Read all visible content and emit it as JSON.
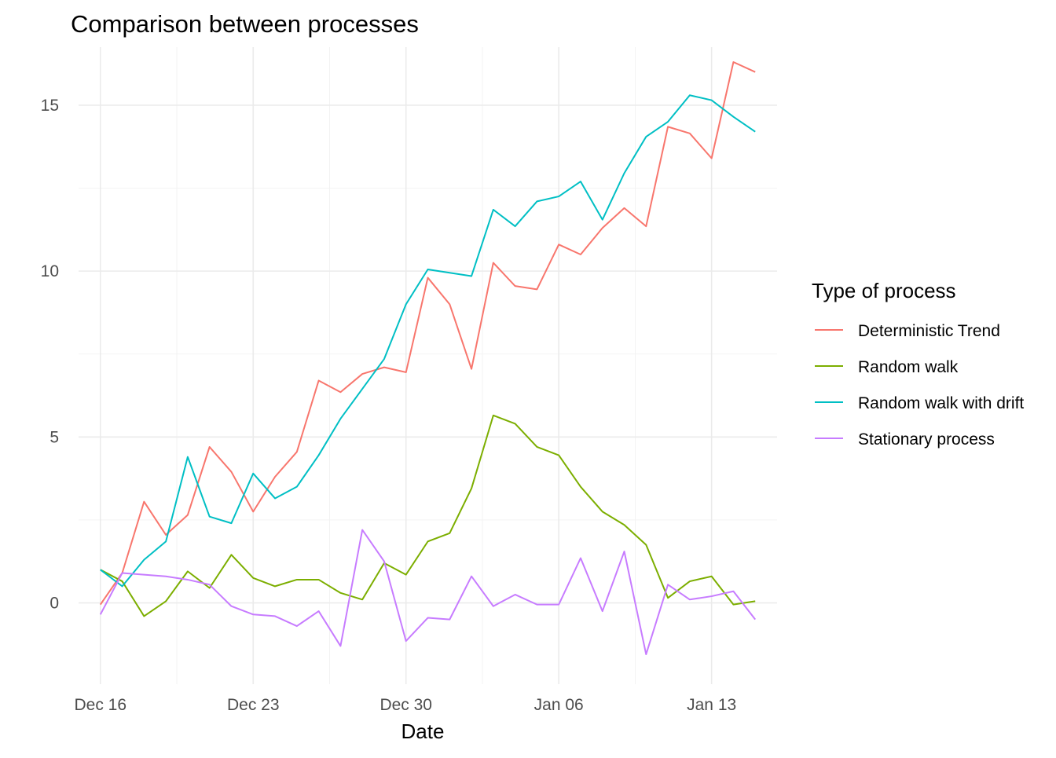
{
  "chart_data": {
    "type": "line",
    "title": "Comparison between processes",
    "xlabel": "Date",
    "ylabel": "",
    "legend_title": "Type of process",
    "legend_position": "right",
    "grid": true,
    "x_start": "2018-12-16",
    "x_end": "2019-01-15",
    "xlim": [
      "2018-12-15",
      "2019-01-16"
    ],
    "ylim": [
      -2.45,
      16.75
    ],
    "y_ticks": [
      0,
      5,
      10,
      15
    ],
    "y_tick_labels": [
      "0",
      "5",
      "10",
      "15"
    ],
    "x_tick_dates": [
      "2018-12-16",
      "2018-12-23",
      "2018-12-30",
      "2019-01-06",
      "2019-01-13"
    ],
    "x_tick_labels": [
      "Dec 16",
      "Dec 23",
      "Dec 30",
      "Jan 06",
      "Jan 13"
    ],
    "series": [
      {
        "name": "Deterministic Trend",
        "color": "#F8766D",
        "values": [
          -0.05,
          0.9,
          3.05,
          2.05,
          2.65,
          4.7,
          3.95,
          2.75,
          3.8,
          4.55,
          6.7,
          6.35,
          6.9,
          7.1,
          6.95,
          9.8,
          9.0,
          7.05,
          10.25,
          9.55,
          9.45,
          10.8,
          10.5,
          11.3,
          11.9,
          11.35,
          14.35,
          14.15,
          13.4,
          16.3,
          16.0
        ]
      },
      {
        "name": "Random walk",
        "color": "#7CAE00",
        "values": [
          1.0,
          0.65,
          -0.4,
          0.05,
          0.95,
          0.45,
          1.45,
          0.75,
          0.5,
          0.7,
          0.7,
          0.3,
          0.1,
          1.2,
          0.85,
          1.85,
          2.1,
          3.45,
          5.65,
          5.4,
          4.7,
          4.45,
          3.5,
          2.75,
          2.35,
          1.75,
          0.15,
          0.65,
          0.8,
          -0.05,
          0.05
        ]
      },
      {
        "name": "Random walk with drift",
        "color": "#00BFC4",
        "values": [
          1.0,
          0.5,
          1.3,
          1.85,
          4.4,
          2.6,
          2.4,
          3.9,
          3.15,
          3.5,
          4.45,
          5.55,
          6.45,
          7.35,
          9.0,
          10.05,
          9.95,
          9.85,
          11.85,
          11.35,
          12.1,
          12.25,
          12.7,
          11.55,
          12.95,
          14.05,
          14.5,
          15.3,
          15.15,
          14.65,
          14.2
        ]
      },
      {
        "name": "Stationary process",
        "color": "#C77CFF",
        "values": [
          -0.35,
          0.9,
          0.85,
          0.8,
          0.7,
          0.55,
          -0.1,
          -0.35,
          -0.4,
          -0.7,
          -0.25,
          -1.3,
          2.2,
          1.25,
          -1.15,
          -0.45,
          -0.5,
          0.8,
          -0.1,
          0.25,
          -0.05,
          -0.05,
          1.35,
          -0.25,
          1.55,
          -1.55,
          0.55,
          0.1,
          0.2,
          0.35,
          -0.5
        ]
      }
    ]
  }
}
